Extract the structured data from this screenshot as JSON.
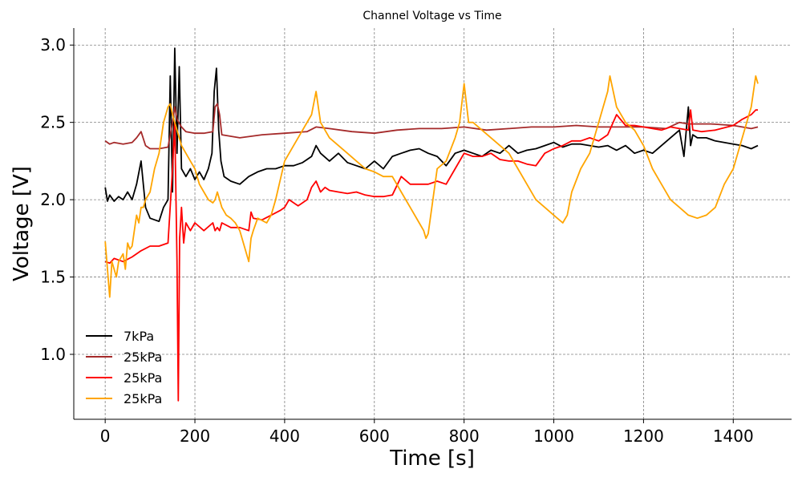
{
  "chart_data": {
    "type": "line",
    "title": "Channel Voltage vs Time",
    "xlabel": "Time [s]",
    "ylabel": "Voltage [V]",
    "xlim": [
      -70,
      1530
    ],
    "ylim": [
      0.58,
      3.11
    ],
    "xticks": [
      0,
      200,
      400,
      600,
      800,
      1000,
      1200,
      1400
    ],
    "xtick_labels": [
      "0",
      "200",
      "400",
      "600",
      "800",
      "1000",
      "1200",
      "1400"
    ],
    "yticks": [
      1.0,
      1.5,
      2.0,
      2.5,
      3.0
    ],
    "ytick_labels": [
      "1.0",
      "1.5",
      "2.0",
      "2.5",
      "3.0"
    ],
    "grid": true,
    "legend_position": "lower-left",
    "series": [
      {
        "name": "7kPa",
        "color": "#000000",
        "x": [
          0,
          5,
          10,
          20,
          30,
          40,
          50,
          60,
          70,
          80,
          90,
          100,
          110,
          120,
          130,
          140,
          145,
          150,
          155,
          160,
          165,
          170,
          180,
          190,
          200,
          210,
          220,
          230,
          238,
          243,
          248,
          253,
          258,
          265,
          280,
          300,
          320,
          340,
          360,
          380,
          400,
          420,
          440,
          460,
          470,
          480,
          500,
          520,
          540,
          560,
          580,
          600,
          620,
          640,
          660,
          680,
          700,
          720,
          740,
          760,
          780,
          800,
          820,
          840,
          860,
          880,
          900,
          920,
          940,
          960,
          980,
          1000,
          1020,
          1040,
          1060,
          1080,
          1100,
          1120,
          1140,
          1160,
          1180,
          1200,
          1220,
          1240,
          1260,
          1280,
          1290,
          1300,
          1305,
          1310,
          1320,
          1340,
          1360,
          1380,
          1400,
          1420,
          1440,
          1455
        ],
        "y": [
          2.08,
          1.99,
          2.03,
          1.99,
          2.02,
          2.0,
          2.05,
          2.0,
          2.1,
          2.25,
          1.95,
          1.88,
          1.87,
          1.86,
          1.95,
          2.0,
          2.8,
          2.05,
          2.98,
          2.3,
          2.86,
          2.2,
          2.15,
          2.2,
          2.13,
          2.18,
          2.13,
          2.2,
          2.3,
          2.7,
          2.85,
          2.45,
          2.25,
          2.15,
          2.12,
          2.1,
          2.15,
          2.18,
          2.2,
          2.2,
          2.22,
          2.22,
          2.24,
          2.28,
          2.35,
          2.3,
          2.25,
          2.3,
          2.24,
          2.22,
          2.2,
          2.25,
          2.2,
          2.28,
          2.3,
          2.32,
          2.33,
          2.3,
          2.28,
          2.22,
          2.3,
          2.32,
          2.3,
          2.28,
          2.32,
          2.3,
          2.35,
          2.3,
          2.32,
          2.33,
          2.35,
          2.37,
          2.34,
          2.36,
          2.36,
          2.35,
          2.34,
          2.35,
          2.32,
          2.35,
          2.3,
          2.32,
          2.3,
          2.35,
          2.4,
          2.45,
          2.28,
          2.6,
          2.35,
          2.42,
          2.4,
          2.4,
          2.38,
          2.37,
          2.36,
          2.35,
          2.33,
          2.35
        ]
      },
      {
        "name": "25kPa",
        "color": "#a52a2a",
        "x": [
          0,
          10,
          20,
          40,
          60,
          70,
          80,
          90,
          100,
          120,
          140,
          150,
          155,
          160,
          170,
          180,
          200,
          220,
          240,
          245,
          250,
          255,
          260,
          280,
          300,
          350,
          400,
          450,
          470,
          500,
          550,
          600,
          650,
          700,
          750,
          800,
          850,
          900,
          950,
          1000,
          1050,
          1100,
          1150,
          1200,
          1250,
          1280,
          1300,
          1350,
          1400,
          1420,
          1440,
          1455
        ],
        "y": [
          2.38,
          2.36,
          2.37,
          2.36,
          2.37,
          2.4,
          2.44,
          2.35,
          2.33,
          2.33,
          2.34,
          2.5,
          2.6,
          2.52,
          2.47,
          2.44,
          2.43,
          2.43,
          2.44,
          2.6,
          2.62,
          2.55,
          2.42,
          2.41,
          2.4,
          2.42,
          2.43,
          2.44,
          2.47,
          2.46,
          2.44,
          2.43,
          2.45,
          2.46,
          2.46,
          2.47,
          2.45,
          2.46,
          2.47,
          2.47,
          2.48,
          2.47,
          2.47,
          2.47,
          2.46,
          2.5,
          2.49,
          2.49,
          2.48,
          2.47,
          2.46,
          2.47
        ]
      },
      {
        "name": "25kPa",
        "color": "#ff0000",
        "x": [
          0,
          10,
          20,
          40,
          60,
          80,
          100,
          120,
          140,
          150,
          155,
          160,
          163,
          166,
          170,
          175,
          180,
          190,
          200,
          220,
          240,
          245,
          250,
          255,
          260,
          280,
          300,
          320,
          325,
          330,
          350,
          370,
          390,
          400,
          410,
          430,
          450,
          460,
          470,
          480,
          490,
          500,
          520,
          540,
          560,
          580,
          600,
          620,
          640,
          660,
          680,
          700,
          720,
          740,
          760,
          780,
          800,
          820,
          840,
          860,
          880,
          900,
          920,
          940,
          960,
          980,
          1000,
          1020,
          1040,
          1060,
          1080,
          1100,
          1120,
          1140,
          1160,
          1180,
          1200,
          1220,
          1240,
          1260,
          1280,
          1300,
          1305,
          1310,
          1330,
          1360,
          1400,
          1420,
          1440,
          1450,
          1455
        ],
        "y": [
          1.6,
          1.59,
          1.62,
          1.6,
          1.63,
          1.67,
          1.7,
          1.7,
          1.72,
          2.2,
          2.5,
          1.6,
          0.7,
          1.75,
          1.95,
          1.72,
          1.85,
          1.8,
          1.85,
          1.8,
          1.85,
          1.8,
          1.82,
          1.8,
          1.85,
          1.82,
          1.82,
          1.8,
          1.92,
          1.88,
          1.87,
          1.9,
          1.93,
          1.95,
          2.0,
          1.96,
          2.0,
          2.08,
          2.12,
          2.05,
          2.08,
          2.06,
          2.05,
          2.04,
          2.05,
          2.03,
          2.02,
          2.02,
          2.03,
          2.15,
          2.1,
          2.1,
          2.1,
          2.12,
          2.1,
          2.2,
          2.3,
          2.28,
          2.28,
          2.3,
          2.26,
          2.25,
          2.25,
          2.23,
          2.22,
          2.3,
          2.33,
          2.35,
          2.38,
          2.38,
          2.4,
          2.38,
          2.42,
          2.55,
          2.48,
          2.48,
          2.47,
          2.46,
          2.45,
          2.47,
          2.46,
          2.45,
          2.58,
          2.45,
          2.44,
          2.45,
          2.48,
          2.52,
          2.55,
          2.58,
          2.58
        ]
      },
      {
        "name": "25kPa",
        "color": "#ffa500",
        "x": [
          0,
          5,
          10,
          15,
          20,
          25,
          30,
          40,
          45,
          50,
          55,
          60,
          70,
          75,
          80,
          85,
          90,
          100,
          110,
          120,
          130,
          140,
          145,
          150,
          155,
          160,
          170,
          180,
          190,
          200,
          210,
          220,
          230,
          240,
          245,
          250,
          260,
          270,
          280,
          290,
          300,
          310,
          320,
          325,
          330,
          340,
          360,
          370,
          380,
          400,
          420,
          440,
          460,
          470,
          480,
          500,
          520,
          540,
          560,
          580,
          600,
          620,
          640,
          660,
          680,
          700,
          710,
          715,
          720,
          740,
          760,
          780,
          790,
          800,
          810,
          820,
          840,
          860,
          880,
          900,
          920,
          940,
          960,
          980,
          1000,
          1020,
          1030,
          1040,
          1060,
          1080,
          1100,
          1110,
          1120,
          1125,
          1140,
          1160,
          1180,
          1200,
          1220,
          1240,
          1260,
          1280,
          1300,
          1320,
          1340,
          1360,
          1380,
          1400,
          1410,
          1420,
          1440,
          1450,
          1455
        ],
        "y": [
          1.73,
          1.55,
          1.37,
          1.6,
          1.55,
          1.5,
          1.6,
          1.65,
          1.55,
          1.72,
          1.68,
          1.7,
          1.9,
          1.85,
          1.95,
          1.95,
          2.0,
          2.05,
          2.2,
          2.3,
          2.5,
          2.6,
          2.62,
          2.55,
          2.5,
          2.45,
          2.35,
          2.3,
          2.25,
          2.2,
          2.1,
          2.05,
          2.0,
          1.98,
          2.0,
          2.05,
          1.95,
          1.9,
          1.88,
          1.85,
          1.8,
          1.7,
          1.6,
          1.75,
          1.8,
          1.88,
          1.85,
          1.9,
          2.0,
          2.25,
          2.35,
          2.45,
          2.55,
          2.7,
          2.5,
          2.4,
          2.35,
          2.3,
          2.25,
          2.2,
          2.18,
          2.15,
          2.15,
          2.05,
          1.95,
          1.85,
          1.8,
          1.75,
          1.78,
          2.2,
          2.25,
          2.4,
          2.5,
          2.75,
          2.5,
          2.5,
          2.45,
          2.4,
          2.35,
          2.3,
          2.2,
          2.1,
          2.0,
          1.95,
          1.9,
          1.85,
          1.9,
          2.05,
          2.2,
          2.3,
          2.5,
          2.6,
          2.7,
          2.8,
          2.6,
          2.5,
          2.45,
          2.35,
          2.2,
          2.1,
          2.0,
          1.95,
          1.9,
          1.88,
          1.9,
          1.95,
          2.1,
          2.2,
          2.3,
          2.4,
          2.6,
          2.8,
          2.75
        ]
      }
    ]
  }
}
